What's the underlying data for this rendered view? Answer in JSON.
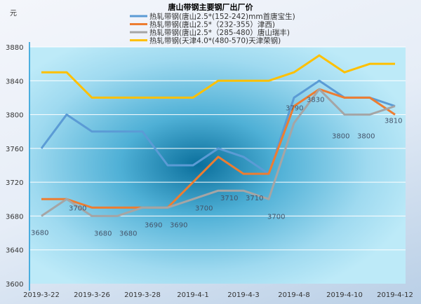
{
  "chart_data": {
    "type": "line",
    "title": "唐山带钢主要钢厂出厂价",
    "ylabel": "元",
    "ylim": [
      3600,
      3880
    ],
    "yticks": [
      3600,
      3640,
      3680,
      3720,
      3760,
      3800,
      3840,
      3880
    ],
    "grid": true,
    "legend_position": "top",
    "categories": [
      "2019-3-22",
      "",
      "2019-3-26",
      "",
      "2019-3-28",
      "",
      "2019-4-1",
      "",
      "2019-4-3",
      "",
      "2019-4-8",
      "",
      "2019-4-10",
      "",
      "2019-4-12"
    ],
    "series": [
      {
        "name": "热轧带钢(唐山2.5*(152-242)mm首唐宝生)",
        "color": "#5b9bd5",
        "values": [
          3760,
          3800,
          3780,
          3780,
          3780,
          3740,
          3740,
          3760,
          3750,
          3730,
          3820,
          3840,
          3820,
          3820,
          3810
        ]
      },
      {
        "name": "热轧带钢(唐山2.5*（232-355）津西)",
        "color": "#ed7d31",
        "values": [
          3700,
          3700,
          3690,
          3690,
          3690,
          3690,
          3720,
          3750,
          3730,
          3730,
          3810,
          3830,
          3820,
          3820,
          3800
        ]
      },
      {
        "name": "热轧带钢(唐山2.5*（285-480）唐山瑞丰)",
        "color": "#a5a5a5",
        "values": [
          3680,
          3700,
          3680,
          3680,
          3690,
          3690,
          3700,
          3710,
          3710,
          3700,
          3790,
          3830,
          3800,
          3800,
          3810
        ],
        "data_labels": true
      },
      {
        "name": "热轧带钢(天津4.0*(480-570)天津荣钢)",
        "color": "#ffc000",
        "values": [
          3850,
          3850,
          3820,
          3820,
          3820,
          3820,
          3820,
          3840,
          3840,
          3840,
          3850,
          3870,
          3850,
          3860,
          3860
        ]
      }
    ]
  }
}
